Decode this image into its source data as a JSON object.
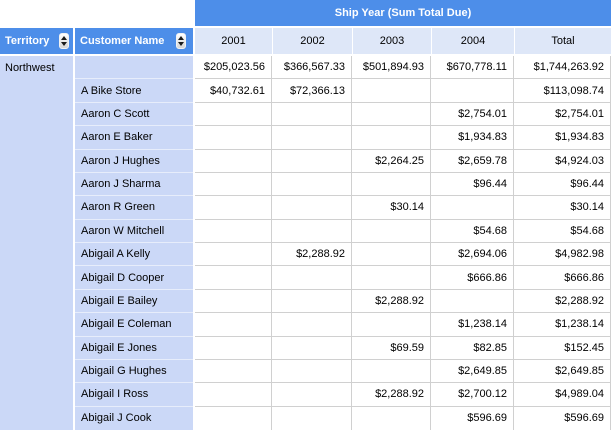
{
  "pivot_table": {
    "group_header": "Ship Year (Sum Total Due)",
    "territory_header": "Territory",
    "customer_header": "Customer Name",
    "column_headers": [
      "2001",
      "2002",
      "2003",
      "2004",
      "Total"
    ],
    "territory_value": "Northwest",
    "rows": [
      {
        "customer": "",
        "values": [
          "$205,023.56",
          "$366,567.33",
          "$501,894.93",
          "$670,778.11",
          "$1,744,263.92"
        ]
      },
      {
        "customer": "A Bike Store",
        "values": [
          "$40,732.61",
          "$72,366.13",
          "",
          "",
          "$113,098.74"
        ]
      },
      {
        "customer": "Aaron C Scott",
        "values": [
          "",
          "",
          "",
          "$2,754.01",
          "$2,754.01"
        ]
      },
      {
        "customer": "Aaron E Baker",
        "values": [
          "",
          "",
          "",
          "$1,934.83",
          "$1,934.83"
        ]
      },
      {
        "customer": "Aaron J Hughes",
        "values": [
          "",
          "",
          "$2,264.25",
          "$2,659.78",
          "$4,924.03"
        ]
      },
      {
        "customer": "Aaron J Sharma",
        "values": [
          "",
          "",
          "",
          "$96.44",
          "$96.44"
        ]
      },
      {
        "customer": "Aaron R Green",
        "values": [
          "",
          "",
          "$30.14",
          "",
          "$30.14"
        ]
      },
      {
        "customer": "Aaron W Mitchell",
        "values": [
          "",
          "",
          "",
          "$54.68",
          "$54.68"
        ]
      },
      {
        "customer": "Abigail A Kelly",
        "values": [
          "",
          "$2,288.92",
          "",
          "$2,694.06",
          "$4,982.98"
        ]
      },
      {
        "customer": "Abigail D Cooper",
        "values": [
          "",
          "",
          "",
          "$666.86",
          "$666.86"
        ]
      },
      {
        "customer": "Abigail E Bailey",
        "values": [
          "",
          "",
          "$2,288.92",
          "",
          "$2,288.92"
        ]
      },
      {
        "customer": "Abigail E Coleman",
        "values": [
          "",
          "",
          "",
          "$1,238.14",
          "$1,238.14"
        ]
      },
      {
        "customer": "Abigail E Jones",
        "values": [
          "",
          "",
          "$69.59",
          "$82.85",
          "$152.45"
        ]
      },
      {
        "customer": "Abigail G Hughes",
        "values": [
          "",
          "",
          "",
          "$2,649.85",
          "$2,649.85"
        ]
      },
      {
        "customer": "Abigail I Ross",
        "values": [
          "",
          "",
          "$2,288.92",
          "$2,700.12",
          "$4,989.04"
        ]
      },
      {
        "customer": "Abigail J Cook",
        "values": [
          "",
          "",
          "",
          "$596.69",
          "$596.69"
        ]
      }
    ],
    "icons": {
      "territory_sort": "sort-up-down-icon",
      "customer_sort": "sort-up-down-icon"
    },
    "colors": {
      "header_blue": "#4D8EE9",
      "column_header_bg": "#DEE7F8",
      "row_header_bg": "#CBD8F7",
      "grid_line": "#D0D0D0",
      "header_text": "#FFFFFF",
      "cell_text": "#000000"
    }
  }
}
